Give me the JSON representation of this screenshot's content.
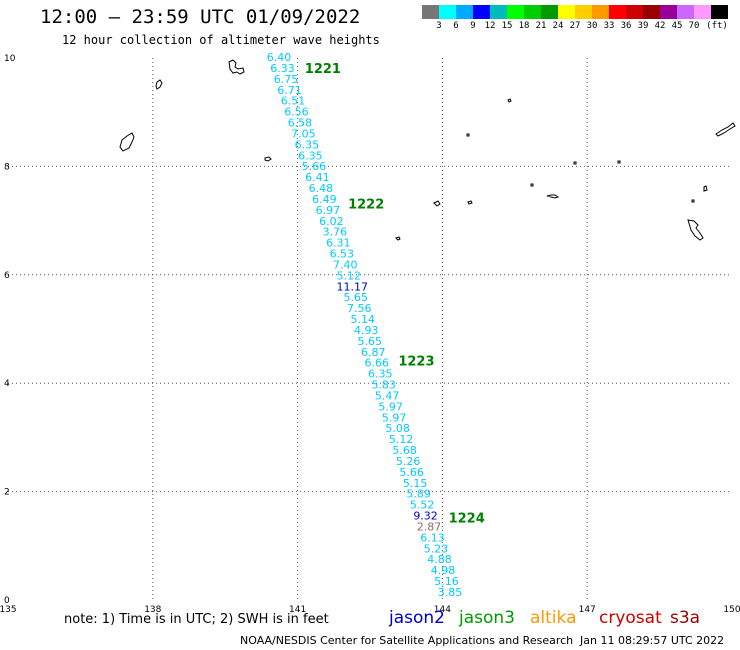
{
  "header": {
    "title": "12:00 – 23:59 UTC 01/09/2022",
    "subtitle": "12 hour collection of altimeter wave heights"
  },
  "colorbar": {
    "colors": [
      "#777777",
      "#00ffff",
      "#00aaff",
      "#0000ff",
      "#00bbbb",
      "#00ff00",
      "#00cc00",
      "#009900",
      "#ffff00",
      "#ffcc00",
      "#ff9900",
      "#ff0000",
      "#cc0000",
      "#990000",
      "#990099",
      "#cc66ff",
      "#ff99ff",
      "#000000"
    ],
    "labels": [
      "3",
      "6",
      "9",
      "12",
      "15",
      "18",
      "21",
      "24",
      "27",
      "30",
      "33",
      "36",
      "39",
      "42",
      "45",
      "70"
    ],
    "unit": "(ft)"
  },
  "map": {
    "lon_range": [
      135,
      150
    ],
    "lat_range": [
      0,
      10
    ],
    "x_ticks": [
      "135",
      "138",
      "141",
      "144",
      "147",
      "150"
    ],
    "y_ticks": [
      "10",
      "8",
      "6",
      "4",
      "2",
      "0"
    ],
    "gridlines": "dotted",
    "pass_labels": [
      {
        "text": "1221",
        "lat": 9.8
      },
      {
        "text": "1222",
        "lat": 7.3
      },
      {
        "text": "1223",
        "lat": 4.4
      },
      {
        "text": "1224",
        "lat": 1.5
      }
    ],
    "wave_heights": [
      {
        "v": "6.40",
        "c": "#00ccff"
      },
      {
        "v": "6.33",
        "c": "#00ccff"
      },
      {
        "v": "6.75",
        "c": "#00ccff"
      },
      {
        "v": "6.71",
        "c": "#00ccff"
      },
      {
        "v": "6.51",
        "c": "#00ccff"
      },
      {
        "v": "6.56",
        "c": "#00ccff"
      },
      {
        "v": "6.58",
        "c": "#00ccff"
      },
      {
        "v": "7.05",
        "c": "#00ccff"
      },
      {
        "v": "6.35",
        "c": "#00ccff"
      },
      {
        "v": "6.35",
        "c": "#00ccff"
      },
      {
        "v": "5.66",
        "c": "#00ccff"
      },
      {
        "v": "6.41",
        "c": "#00ccff"
      },
      {
        "v": "6.48",
        "c": "#00ccff"
      },
      {
        "v": "6.49",
        "c": "#00ccff"
      },
      {
        "v": "6.97",
        "c": "#00ccff"
      },
      {
        "v": "6.02",
        "c": "#00ccff"
      },
      {
        "v": "3.76",
        "c": "#00ccff"
      },
      {
        "v": "6.31",
        "c": "#00ccff"
      },
      {
        "v": "6.53",
        "c": "#00ccff"
      },
      {
        "v": "7.40",
        "c": "#00ccff"
      },
      {
        "v": "5.12",
        "c": "#00ccff"
      },
      {
        "v": "11.17",
        "c": "#0000cc"
      },
      {
        "v": "5.65",
        "c": "#00ccff"
      },
      {
        "v": "7.56",
        "c": "#00ccff"
      },
      {
        "v": "5.14",
        "c": "#00ccff"
      },
      {
        "v": "4.93",
        "c": "#00ccff"
      },
      {
        "v": "5.65",
        "c": "#00ccff"
      },
      {
        "v": "6.87",
        "c": "#00ccff"
      },
      {
        "v": "6.66",
        "c": "#00ccff"
      },
      {
        "v": "6.35",
        "c": "#00ccff"
      },
      {
        "v": "5.83",
        "c": "#00ccff"
      },
      {
        "v": "5.47",
        "c": "#00ccff"
      },
      {
        "v": "5.97",
        "c": "#00ccff"
      },
      {
        "v": "5.97",
        "c": "#00ccff"
      },
      {
        "v": "5.08",
        "c": "#00ccff"
      },
      {
        "v": "5.12",
        "c": "#00ccff"
      },
      {
        "v": "5.68",
        "c": "#00ccff"
      },
      {
        "v": "5.26",
        "c": "#00ccff"
      },
      {
        "v": "5.66",
        "c": "#00ccff"
      },
      {
        "v": "5.15",
        "c": "#00ccff"
      },
      {
        "v": "5.89",
        "c": "#00ccff"
      },
      {
        "v": "5.52",
        "c": "#00ccff"
      },
      {
        "v": "9.32",
        "c": "#0000cc"
      },
      {
        "v": "2.87",
        "c": "#996666"
      },
      {
        "v": "6.13",
        "c": "#00ccff"
      },
      {
        "v": "5.23",
        "c": "#00ccff"
      },
      {
        "v": "4.88",
        "c": "#00ccff"
      },
      {
        "v": "4.98",
        "c": "#00ccff"
      },
      {
        "v": "5.16",
        "c": "#00ccff"
      },
      {
        "v": "3.85",
        "c": "#00ccff"
      }
    ]
  },
  "note": "note: 1) Time is in UTC; 2) SWH is in feet",
  "satellites": [
    {
      "name": "jason2",
      "color": "#0000cc"
    },
    {
      "name": "jason3",
      "color": "#009900"
    },
    {
      "name": "altika",
      "color": "#ff9900"
    },
    {
      "name": "cryosat",
      "color": "#cc0000"
    },
    {
      "name": "s3a",
      "color": "#990000"
    }
  ],
  "footer": {
    "credit": "NOAA/NESDIS Center for Satellite Applications and Research",
    "timestamp": "Jan 11 08:29:57 UTC 2022"
  }
}
